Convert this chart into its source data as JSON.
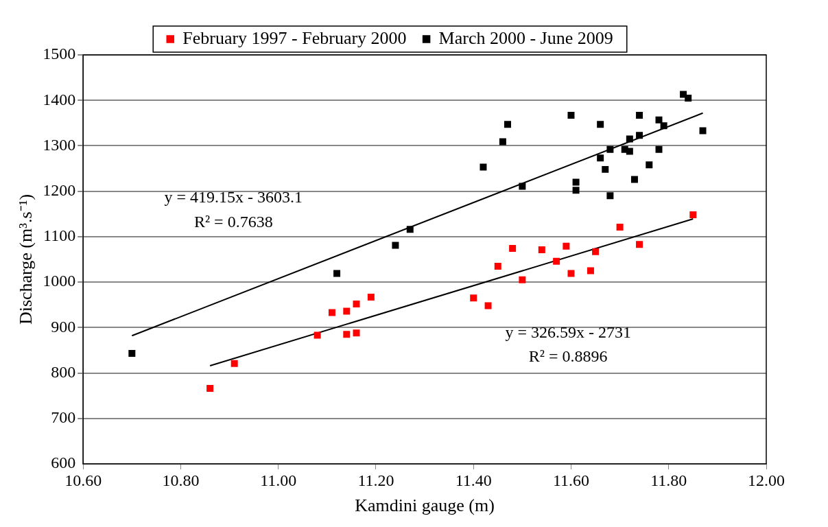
{
  "chart_data": {
    "type": "scatter",
    "xlabel": "Kamdini gauge (m)",
    "ylabel": "Discharge (m³.s⁻¹)",
    "xlim": [
      10.6,
      12.0
    ],
    "xticks": [
      {
        "value": 10.6,
        "label": "10.60"
      },
      {
        "value": 10.8,
        "label": "10.80"
      },
      {
        "value": 11.0,
        "label": "11.00"
      },
      {
        "value": 11.2,
        "label": "11.20"
      },
      {
        "value": 11.4,
        "label": "11.40"
      },
      {
        "value": 11.6,
        "label": "11.60"
      },
      {
        "value": 11.8,
        "label": "11.80"
      },
      {
        "value": 12.0,
        "label": "12.00"
      }
    ],
    "ylim": [
      600,
      1500
    ],
    "yticks": [
      600,
      700,
      800,
      900,
      1000,
      1100,
      1200,
      1300,
      1400,
      1500
    ],
    "grid": "y",
    "legend": "top",
    "marker": "square",
    "series": [
      {
        "name": "February 1997 - February 2000",
        "color": "#ff0000",
        "x": [
          10.86,
          10.91,
          11.08,
          11.11,
          11.14,
          11.14,
          11.16,
          11.16,
          11.19,
          11.4,
          11.43,
          11.45,
          11.48,
          11.5,
          11.54,
          11.57,
          11.59,
          11.6,
          11.64,
          11.65,
          11.7,
          11.74,
          11.85
        ],
        "values": [
          766,
          821,
          883,
          933,
          936,
          885,
          952,
          888,
          967,
          965,
          948,
          1035,
          1074,
          1005,
          1071,
          1046,
          1079,
          1019,
          1025,
          1067,
          1121,
          1083,
          1148
        ]
      },
      {
        "name": "March 2000 - June 2009",
        "color": "#000000",
        "x": [
          10.7,
          11.12,
          11.24,
          11.27,
          11.42,
          11.46,
          11.47,
          11.5,
          11.6,
          11.61,
          11.61,
          11.66,
          11.66,
          11.67,
          11.68,
          11.68,
          11.71,
          11.72,
          11.72,
          11.73,
          11.74,
          11.74,
          11.76,
          11.78,
          11.78,
          11.79,
          11.83,
          11.84,
          11.87
        ],
        "values": [
          843,
          1019,
          1081,
          1116,
          1253,
          1309,
          1347,
          1211,
          1367,
          1220,
          1202,
          1347,
          1273,
          1248,
          1292,
          1190,
          1292,
          1288,
          1315,
          1226,
          1367,
          1323,
          1258,
          1357,
          1292,
          1344,
          1413,
          1405,
          1333
        ]
      },
      {
        "type": "line",
        "color": "#000000",
        "marker": "none",
        "x": [
          10.7,
          11.87
        ],
        "values": [
          882,
          1372
        ]
      },
      {
        "type": "line",
        "color": "#000000",
        "marker": "none",
        "x": [
          10.86,
          11.85
        ],
        "values": [
          816,
          1139
        ]
      }
    ],
    "annotations": [
      "y = 419.15x - 3603.1",
      "R² = 0.7638",
      "y = 326.59x - 2731",
      "R² = 0.8896"
    ]
  }
}
